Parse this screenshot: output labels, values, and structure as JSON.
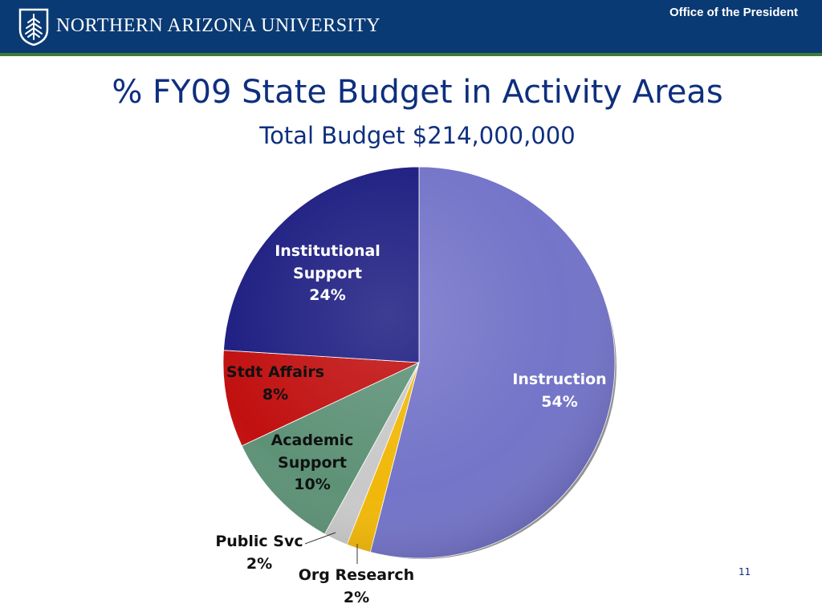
{
  "header": {
    "university": "NORTHERN ARIZONA UNIVERSITY",
    "office": "Office of the President",
    "logo_icon": "nau-pine-tree-shield-icon"
  },
  "chart_data": {
    "type": "pie",
    "title": "% FY09 State Budget in Activity Areas",
    "subtitle": "Total Budget $214,000,000",
    "slices": [
      {
        "name": "Instruction",
        "value": 54,
        "label": "54%",
        "color": "#7474c9"
      },
      {
        "name": "Org Research",
        "value": 2,
        "label": "2%",
        "color": "#f1b80a"
      },
      {
        "name": "Public Svc",
        "value": 2,
        "label": "2%",
        "color": "#c9c9c9"
      },
      {
        "name": "Academic Support",
        "value": 10,
        "label": "10%",
        "color": "#5e9277"
      },
      {
        "name": "Stdt Affairs",
        "value": 8,
        "label": "8%",
        "color": "#c11010"
      },
      {
        "name": "Institutional Support",
        "value": 24,
        "label": "24%",
        "color": "#1e1e82"
      }
    ],
    "label_texts": {
      "instruction": [
        "Instruction",
        "54%"
      ],
      "institutional": [
        "Institutional",
        "Support",
        "24%"
      ],
      "stdt": [
        "Stdt Affairs",
        "8%"
      ],
      "academic": [
        "Academic",
        "Support",
        "10%"
      ],
      "public": [
        "Public Svc",
        "2%"
      ],
      "org": [
        "Org Research",
        "2%"
      ]
    },
    "start": "12 o'clock",
    "direction": "clockwise",
    "legend": "none"
  },
  "page_number": "11"
}
